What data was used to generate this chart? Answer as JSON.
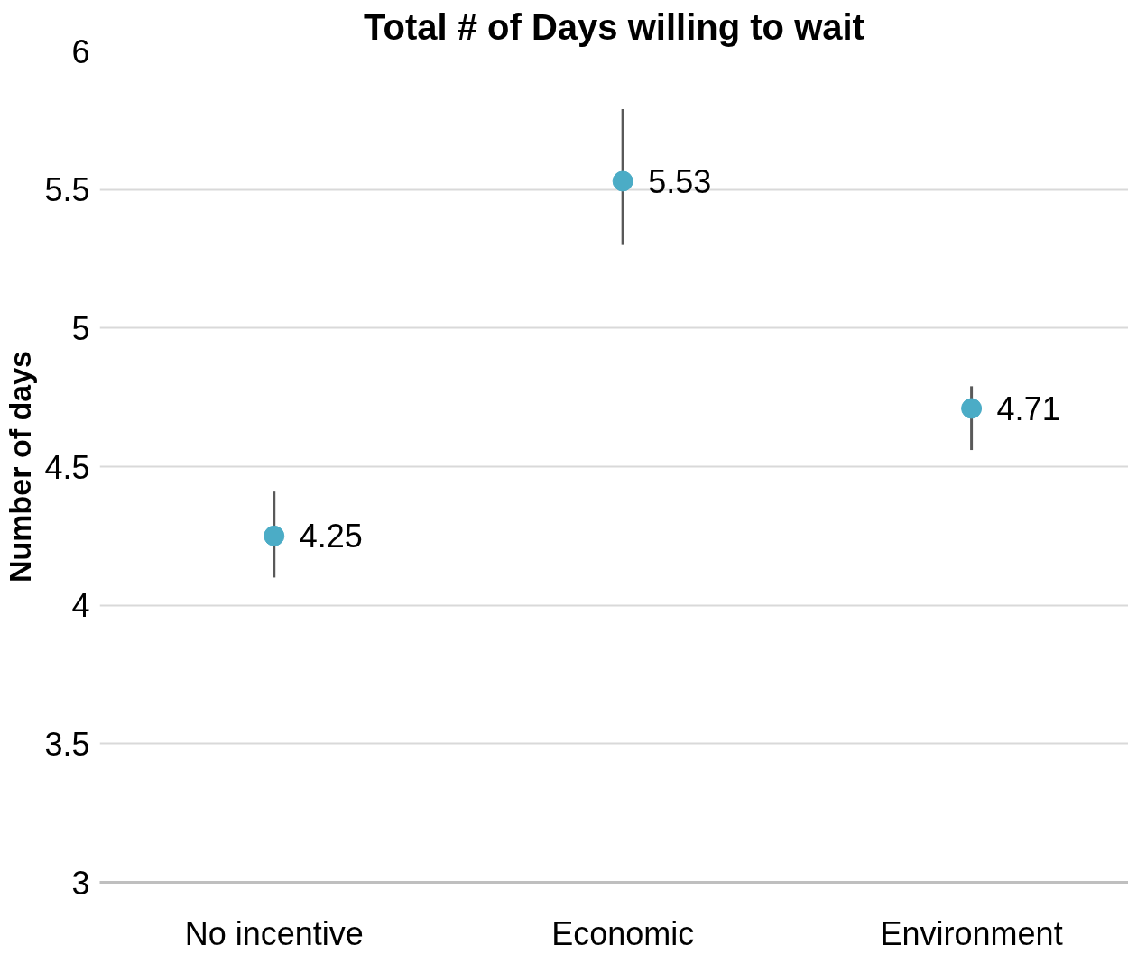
{
  "chart_data": {
    "type": "scatter",
    "title": "Total # of Days willing to wait",
    "ylabel": "Number of days",
    "categories": [
      "No incentive",
      "Economic",
      "Environment"
    ],
    "series": [
      {
        "color": "#4bacc6",
        "values": [
          4.25,
          5.53,
          4.71
        ],
        "errors": [
          [
            4.1,
            4.41
          ],
          [
            5.3,
            5.79
          ],
          [
            4.56,
            4.79
          ]
        ]
      }
    ],
    "ylim": [
      3,
      6
    ],
    "yticks": [
      3,
      3.5,
      4,
      4.5,
      5,
      5.5,
      6
    ],
    "grid": "y",
    "data_labels": true,
    "marker": "circle"
  }
}
